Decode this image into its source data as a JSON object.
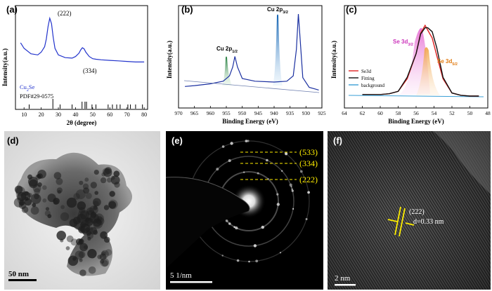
{
  "colors": {
    "xrd_line": "#2233cc",
    "cu_fill_green": "#2e8b57",
    "cu_fill_blue": "#1f5fbf",
    "se_raw": "#dd2222",
    "se_fit": "#111111",
    "se_bg": "#3a9fd6",
    "se_peak1": "#dd55cc",
    "se_peak2": "#e88a1a",
    "saed_label": "#ffee00",
    "fringe_marker": "#ffee00"
  },
  "panel_a": {
    "label": "(a)",
    "peak_222": "(222)",
    "peak_334": "(334)",
    "legend_name": "Cu",
    "legend_sub": "2",
    "legend_tail": "Se",
    "pdf": "PDF#29-0575",
    "ylabel": "Intensity(a.u.)",
    "xlabel": "2θ (degree)",
    "xticks": [
      "10",
      "20",
      "30",
      "40",
      "50",
      "60",
      "70",
      "80"
    ]
  },
  "panel_b": {
    "label": "(b)",
    "peak1_main": "Cu 2p",
    "peak1_sub": "1/2",
    "peak2_main": "Cu 2p",
    "peak2_sub": "3/2",
    "ylabel": "Intensity(a.u.)",
    "xlabel": "Binding Energy (eV)",
    "xticks": [
      "970",
      "965",
      "960",
      "955",
      "950",
      "945",
      "940",
      "935",
      "930",
      "925"
    ]
  },
  "panel_c": {
    "label": "(c)",
    "peak1_main": "Se 3d",
    "peak1_sub": "3/2",
    "peak2_main": "Se 3d",
    "peak2_sub": "5/2",
    "legend": [
      "Se3d",
      "Fitting",
      "background"
    ],
    "ylabel": "Intensity(a.u.)",
    "xlabel": "Binding Energy (eV)",
    "xticks": [
      "64",
      "62",
      "60",
      "58",
      "56",
      "54",
      "52",
      "50",
      "48"
    ]
  },
  "panel_d": {
    "label": "(d)",
    "scale": "50 nm"
  },
  "panel_e": {
    "label": "(e)",
    "rings": [
      "(533)",
      "(334)",
      "(222)"
    ],
    "scale": "5 1/nm"
  },
  "panel_f": {
    "label": "(f)",
    "plane": "(222)",
    "spacing": "d=0.33 nm",
    "scale": "2 nm"
  },
  "chart_data": [
    {
      "type": "line",
      "title": "",
      "xlabel": "2θ (degree)",
      "ylabel": "Intensity(a.u.)",
      "xlim": [
        5,
        82
      ],
      "series": [
        {
          "name": "Cu2Se",
          "x": [
            8,
            10,
            14,
            18,
            20,
            22,
            23,
            24,
            25,
            26,
            27,
            28,
            30,
            34,
            38,
            40,
            42,
            43,
            44,
            45,
            46,
            48,
            50,
            52,
            55,
            60,
            65,
            70,
            75,
            80
          ],
          "y": [
            0.55,
            0.45,
            0.35,
            0.33,
            0.38,
            0.48,
            0.62,
            0.85,
            1.0,
            0.9,
            0.65,
            0.45,
            0.33,
            0.28,
            0.27,
            0.3,
            0.36,
            0.42,
            0.46,
            0.44,
            0.38,
            0.3,
            0.26,
            0.25,
            0.24,
            0.23,
            0.22,
            0.21,
            0.2,
            0.2
          ]
        }
      ],
      "reference_ticks_2theta": [
        13,
        26.8,
        31,
        38,
        43.8,
        45.5,
        46.4,
        49.6,
        51.9,
        59,
        61.5,
        64,
        66,
        70.5,
        72,
        75,
        79
      ]
    },
    {
      "type": "line",
      "xlabel": "Binding Energy (eV)",
      "ylabel": "Intensity(a.u.)",
      "xlim": [
        970,
        925
      ],
      "series": [
        {
          "name": "Cu 2p",
          "x": [
            968,
            965,
            960,
            956,
            954,
            953,
            952.3,
            951.5,
            950,
            946,
            940,
            936,
            934,
            933,
            932.4,
            932,
            931,
            929,
            927,
            926
          ],
          "y": [
            0.18,
            0.19,
            0.21,
            0.24,
            0.3,
            0.4,
            0.52,
            0.4,
            0.27,
            0.24,
            0.23,
            0.24,
            0.3,
            0.6,
            1.0,
            0.8,
            0.28,
            0.17,
            0.15,
            0.14
          ]
        }
      ]
    },
    {
      "type": "line",
      "xlabel": "Binding Energy (eV)",
      "ylabel": "Intensity(a.u.)",
      "xlim": [
        64,
        48
      ],
      "series": [
        {
          "name": "Se3d",
          "x": [
            62,
            60,
            59,
            58,
            57,
            56,
            55.5,
            55,
            54.7,
            54.2,
            53.7,
            53,
            52,
            51,
            50,
            49
          ],
          "y": [
            0.1,
            0.1,
            0.11,
            0.14,
            0.3,
            0.62,
            0.88,
            0.98,
            0.92,
            0.82,
            0.6,
            0.3,
            0.12,
            0.09,
            0.08,
            0.08
          ]
        },
        {
          "name": "Fitting",
          "x": [
            62,
            60,
            59,
            58,
            57,
            56,
            55.5,
            55,
            54.7,
            54.2,
            53.7,
            53,
            52,
            51,
            50,
            49
          ],
          "y": [
            0.1,
            0.1,
            0.11,
            0.14,
            0.32,
            0.62,
            0.87,
            0.95,
            0.95,
            0.9,
            0.7,
            0.32,
            0.12,
            0.09,
            0.08,
            0.08
          ]
        },
        {
          "name": "background",
          "x": [
            62,
            58,
            55,
            52,
            49
          ],
          "y": [
            0.1,
            0.1,
            0.09,
            0.08,
            0.08
          ]
        }
      ]
    }
  ]
}
